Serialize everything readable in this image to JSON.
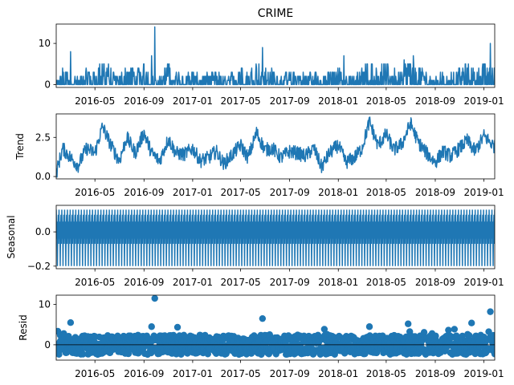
{
  "chart_data": {
    "type": "line",
    "title": "CRIME",
    "x_range": [
      "2016-01-25",
      "2019-01-28"
    ],
    "x_ticks": [
      "2016-05",
      "2016-09",
      "2017-01",
      "2017-05",
      "2017-09",
      "2018-01",
      "2018-05",
      "2018-09",
      "2019-01"
    ],
    "line_color": "#1f77b4",
    "panels": [
      {
        "id": "observed",
        "type": "line",
        "ylabel": "",
        "ylim": [
          -0.7,
          14.7
        ],
        "yticks": [
          0,
          10
        ],
        "y_tick_labels": [
          "0",
          "10"
        ],
        "range": [
          0,
          14
        ],
        "notable_points": [
          {
            "x": "2016-03-01",
            "y": 8
          },
          {
            "x": "2016-09-28",
            "y": 14
          },
          {
            "x": "2016-09-20",
            "y": 7
          },
          {
            "x": "2017-06-25",
            "y": 9
          },
          {
            "x": "2018-01-15",
            "y": 7
          },
          {
            "x": "2018-06-15",
            "y": 6
          },
          {
            "x": "2018-07-08",
            "y": 7
          },
          {
            "x": "2019-01-17",
            "y": 10
          }
        ]
      },
      {
        "id": "trend",
        "type": "line",
        "ylabel": "Trend",
        "ylim": [
          -0.15,
          4.0
        ],
        "yticks": [
          0.0,
          2.5
        ],
        "y_tick_labels": [
          "0.0",
          "2.5"
        ],
        "x": [
          "2016-01-25",
          "2016-02-10",
          "2016-03-01",
          "2016-03-20",
          "2016-04-10",
          "2016-05-01",
          "2016-05-20",
          "2016-06-10",
          "2016-07-01",
          "2016-07-20",
          "2016-08-10",
          "2016-09-01",
          "2016-09-20",
          "2016-10-10",
          "2016-11-01",
          "2016-11-20",
          "2016-12-10",
          "2017-01-01",
          "2017-01-20",
          "2017-02-10",
          "2017-03-01",
          "2017-03-20",
          "2017-04-10",
          "2017-05-01",
          "2017-05-20",
          "2017-06-10",
          "2017-07-01",
          "2017-07-20",
          "2017-08-10",
          "2017-09-01",
          "2017-09-20",
          "2017-10-10",
          "2017-11-01",
          "2017-11-20",
          "2017-12-10",
          "2018-01-01",
          "2018-01-20",
          "2018-02-10",
          "2018-03-01",
          "2018-03-20",
          "2018-04-10",
          "2018-05-01",
          "2018-05-20",
          "2018-06-10",
          "2018-07-01",
          "2018-07-20",
          "2018-08-10",
          "2018-09-01",
          "2018-09-20",
          "2018-10-10",
          "2018-11-01",
          "2018-11-20",
          "2018-12-10",
          "2019-01-01",
          "2019-01-28"
        ],
        "values": [
          0.2,
          1.8,
          1.2,
          0.7,
          1.8,
          1.5,
          3.2,
          2.0,
          1.0,
          2.5,
          1.5,
          2.8,
          1.5,
          1.0,
          2.4,
          1.5,
          1.4,
          1.8,
          1.0,
          1.2,
          1.6,
          0.8,
          1.4,
          2.0,
          1.2,
          2.8,
          1.7,
          1.8,
          1.2,
          1.6,
          1.5,
          1.3,
          1.8,
          0.6,
          1.5,
          2.0,
          0.9,
          1.2,
          1.8,
          3.5,
          2.0,
          2.7,
          1.7,
          2.1,
          3.4,
          2.2,
          1.5,
          0.9,
          1.6,
          1.3,
          1.8,
          2.3,
          1.6,
          2.6,
          1.9
        ]
      },
      {
        "id": "seasonal",
        "type": "line",
        "ylabel": "Seasonal",
        "ylim": [
          -0.215,
          0.155
        ],
        "yticks": [
          -0.2,
          0.0
        ],
        "y_tick_labels": [
          "−0.2",
          "0.0"
        ],
        "pattern": [
          0.13,
          -0.04,
          0.06,
          -0.2,
          0.02,
          0.1,
          -0.07
        ],
        "period_days": 7
      },
      {
        "id": "resid",
        "type": "scatter",
        "ylabel": "Resid",
        "ylim": [
          -3.8,
          12.3
        ],
        "yticks": [
          0,
          10
        ],
        "y_tick_labels": [
          "0",
          "10"
        ],
        "range": [
          -3,
          11.5
        ],
        "outliers": [
          {
            "x": "2016-03-01",
            "y": 5.5
          },
          {
            "x": "2016-09-20",
            "y": 4.5
          },
          {
            "x": "2016-09-28",
            "y": 11.5
          },
          {
            "x": "2017-06-25",
            "y": 6.5
          },
          {
            "x": "2018-03-20",
            "y": 4.5
          },
          {
            "x": "2018-06-25",
            "y": 5.2
          },
          {
            "x": "2018-12-01",
            "y": 5.4
          },
          {
            "x": "2019-01-17",
            "y": 8.2
          }
        ]
      }
    ]
  }
}
